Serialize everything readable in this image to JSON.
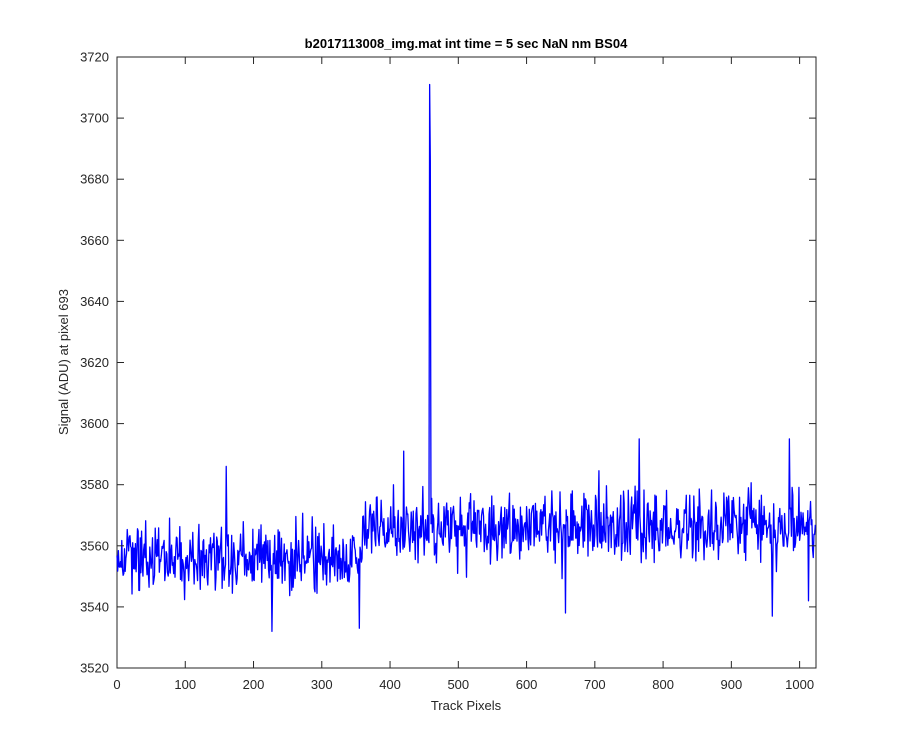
{
  "chart_data": {
    "type": "line",
    "title": "b2017113008_img.mat int time = 5 sec  NaN nm BS04",
    "xlabel": "Track Pixels",
    "ylabel": "Signal (ADU) at pixel 693",
    "xlim": [
      0,
      1024
    ],
    "ylim": [
      3520,
      3720
    ],
    "xticks": [
      0,
      100,
      200,
      300,
      400,
      500,
      600,
      700,
      800,
      900,
      1000
    ],
    "yticks": [
      3520,
      3540,
      3560,
      3580,
      3600,
      3620,
      3640,
      3660,
      3680,
      3700,
      3720
    ],
    "grid": false,
    "box": true,
    "line_color": "#0000ff",
    "series": [
      {
        "n_points": 1024,
        "baseline_segments": [
          {
            "x_from": 0,
            "x_to": 360,
            "mean": 3556,
            "range": [
              3532,
              3586
            ]
          },
          {
            "x_from": 360,
            "x_to": 1024,
            "mean": 3566,
            "range": [
              3536,
              3595
            ]
          }
        ],
        "notable_points": [
          {
            "x": 160,
            "y": 3586
          },
          {
            "x": 227,
            "y": 3532
          },
          {
            "x": 355,
            "y": 3533
          },
          {
            "x": 420,
            "y": 3591
          },
          {
            "x": 458,
            "y": 3711
          },
          {
            "x": 458,
            "y": 3686
          },
          {
            "x": 657,
            "y": 3538
          },
          {
            "x": 765,
            "y": 3595
          },
          {
            "x": 960,
            "y": 3537
          },
          {
            "x": 985,
            "y": 3595
          },
          {
            "x": 1013,
            "y": 3542
          }
        ]
      }
    ]
  }
}
